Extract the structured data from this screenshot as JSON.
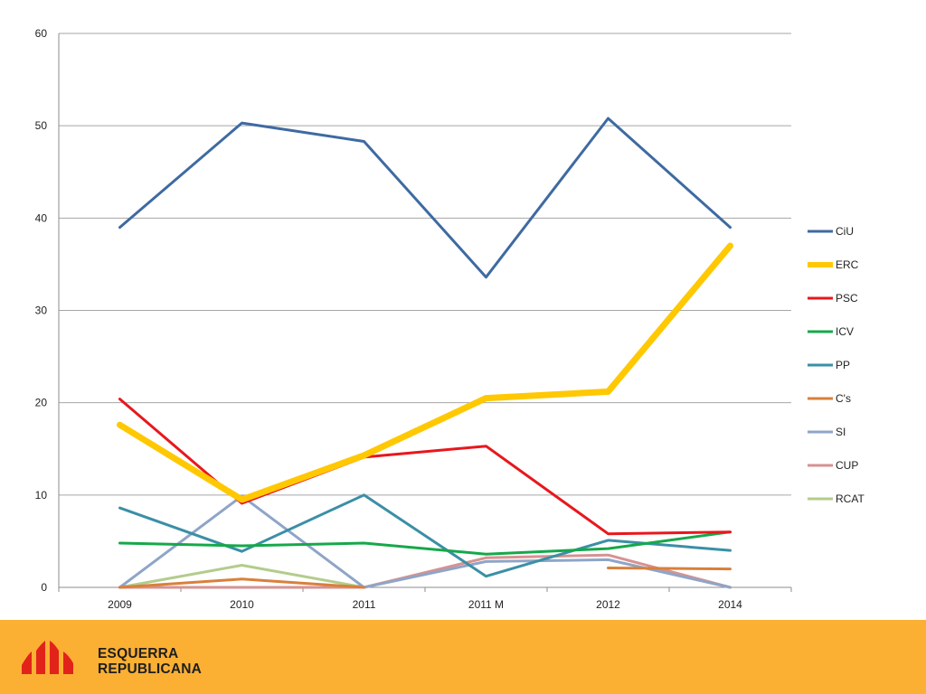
{
  "colors": {
    "footer_bg": "#fbb034",
    "logo_red": "#e2231a",
    "grid": "#a6a6a6"
  },
  "footer": {
    "logo_icon": "esquerra-republicana-logo-icon",
    "brand_line1": "ESQUERRA",
    "brand_line2": "REPUBLICANA"
  },
  "chart_data": {
    "type": "line",
    "categories": [
      "2009",
      "2010",
      "2011",
      "2011 M",
      "2012",
      "2014"
    ],
    "ylim": [
      0,
      60
    ],
    "yticks": [
      0,
      10,
      20,
      30,
      40,
      50,
      60
    ],
    "grid": true,
    "legend_position": "right",
    "series": [
      {
        "name": "CiU",
        "color": "#3e6aa1",
        "width": 3,
        "values": [
          39.0,
          50.3,
          48.3,
          33.6,
          50.8,
          39.0
        ]
      },
      {
        "name": "ERC",
        "color": "#ffc800",
        "width": 7,
        "values": [
          17.6,
          9.5,
          14.3,
          20.5,
          21.2,
          37.0
        ]
      },
      {
        "name": "PSC",
        "color": "#e8171d",
        "width": 3,
        "values": [
          20.4,
          9.1,
          14.1,
          15.3,
          5.8,
          6.0
        ]
      },
      {
        "name": "ICV",
        "color": "#16a84a",
        "width": 3,
        "values": [
          4.8,
          4.5,
          4.8,
          3.6,
          4.2,
          6.0
        ]
      },
      {
        "name": "PP",
        "color": "#3b8fa6",
        "width": 3,
        "values": [
          8.6,
          3.9,
          10.0,
          1.2,
          5.1,
          4.0
        ]
      },
      {
        "name": "C's",
        "color": "#d9803b",
        "width": 3,
        "values": [
          0,
          0.9,
          0,
          null,
          2.1,
          2.0
        ]
      },
      {
        "name": "SI",
        "color": "#8fa5c8",
        "width": 3,
        "values": [
          0,
          9.9,
          0,
          2.8,
          3.0,
          0
        ]
      },
      {
        "name": "CUP",
        "color": "#d69292",
        "width": 3,
        "values": [
          0,
          0,
          0,
          3.2,
          3.5,
          0
        ]
      },
      {
        "name": "RCAT",
        "color": "#b3cc8c",
        "width": 3,
        "values": [
          0,
          2.4,
          0,
          null,
          null,
          null
        ]
      }
    ]
  }
}
